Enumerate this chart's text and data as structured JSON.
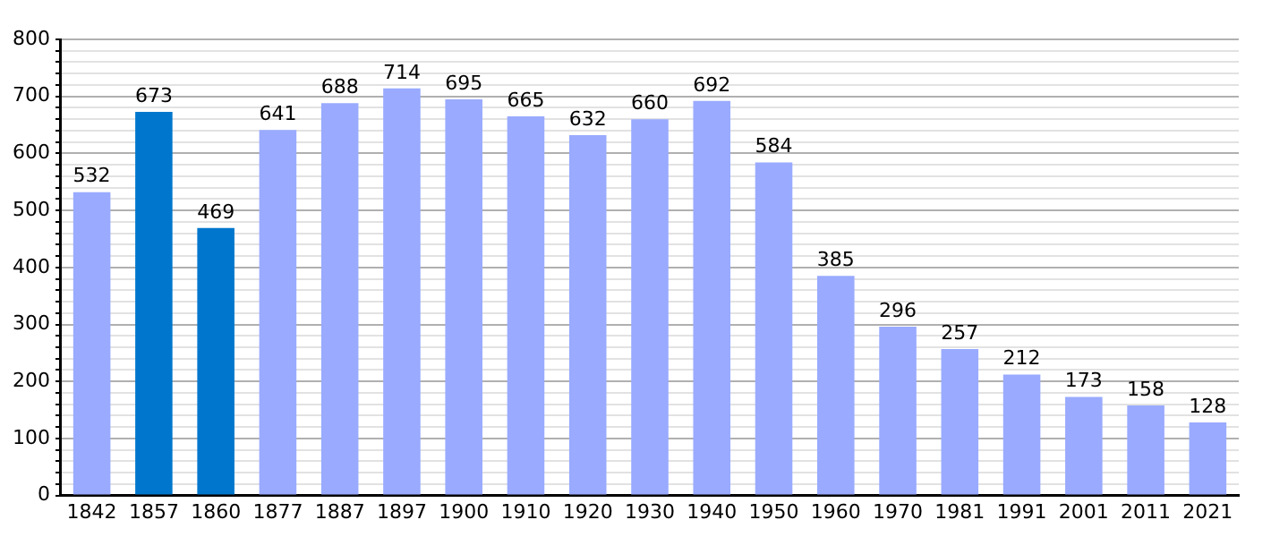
{
  "chart_data": {
    "type": "bar",
    "categories": [
      "1842",
      "1857",
      "1860",
      "1877",
      "1887",
      "1897",
      "1900",
      "1910",
      "1920",
      "1930",
      "1940",
      "1950",
      "1960",
      "1970",
      "1981",
      "1991",
      "2001",
      "2011",
      "2021"
    ],
    "values": [
      532,
      673,
      469,
      641,
      688,
      714,
      695,
      665,
      632,
      660,
      692,
      584,
      385,
      296,
      257,
      212,
      173,
      158,
      128
    ],
    "colors": [
      "#99aaff",
      "#0077cc",
      "#0077cc",
      "#99aaff",
      "#99aaff",
      "#99aaff",
      "#99aaff",
      "#99aaff",
      "#99aaff",
      "#99aaff",
      "#99aaff",
      "#99aaff",
      "#99aaff",
      "#99aaff",
      "#99aaff",
      "#99aaff",
      "#99aaff",
      "#99aaff",
      "#99aaff"
    ],
    "ylim": [
      0,
      800
    ],
    "yticks": [
      0,
      {
        "value": 20,
        "label": null
      },
      {
        "value": 40,
        "label": null
      },
      {
        "value": 60,
        "label": null
      },
      {
        "value": 80,
        "label": null
      },
      100,
      {
        "value": 120,
        "label": null
      },
      {
        "value": 140,
        "label": null
      },
      {
        "value": 160,
        "label": null
      },
      {
        "value": 180,
        "label": null
      },
      200,
      {
        "value": 220,
        "label": null
      },
      {
        "value": 240,
        "label": null
      },
      {
        "value": 260,
        "label": null
      },
      {
        "value": 280,
        "label": null
      },
      300,
      {
        "value": 320,
        "label": null
      },
      {
        "value": 340,
        "label": null
      },
      {
        "value": 360,
        "label": null
      },
      {
        "value": 380,
        "label": null
      },
      400,
      {
        "value": 420,
        "label": null
      },
      {
        "value": 440,
        "label": null
      },
      {
        "value": 460,
        "label": null
      },
      {
        "value": 480,
        "label": null
      },
      500,
      {
        "value": 520,
        "label": null
      },
      {
        "value": 540,
        "label": null
      },
      {
        "value": 560,
        "label": null
      },
      {
        "value": 580,
        "label": null
      },
      600,
      {
        "value": 620,
        "label": null
      },
      {
        "value": 640,
        "label": null
      },
      {
        "value": 660,
        "label": null
      },
      {
        "value": 680,
        "label": null
      },
      700,
      {
        "value": 720,
        "label": null
      },
      {
        "value": 740,
        "label": null
      },
      {
        "value": 760,
        "label": null
      },
      {
        "value": 780,
        "label": null
      },
      800
    ],
    "grid": true,
    "data_labels": true
  }
}
